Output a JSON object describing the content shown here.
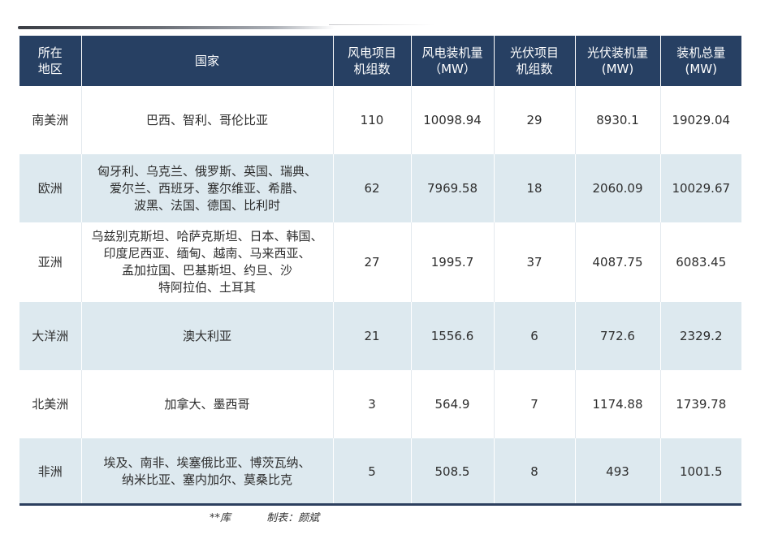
{
  "table": {
    "headers": [
      [
        "所在",
        "地区"
      ],
      [
        "国家"
      ],
      [
        "风电项目",
        "机组数"
      ],
      [
        "风电装机量",
        "（MW）"
      ],
      [
        "光伏项目",
        "机组数"
      ],
      [
        "光伏装机量",
        "(MW)"
      ],
      [
        "装机总量",
        "(MW)"
      ]
    ],
    "rows": [
      {
        "region": "南美洲",
        "countries": [
          "巴西、智利、哥伦比亚"
        ],
        "wind_units": "110",
        "wind_mw": "10098.94",
        "pv_units": "29",
        "pv_mw": "8930.1",
        "total_mw": "19029.04"
      },
      {
        "region": "欧洲",
        "countries": [
          "匈牙利、乌克兰、俄罗斯、英国、瑞典、",
          "爱尔兰、西班牙、塞尔维亚、希腊、",
          "波黑、法国、德国、比利时"
        ],
        "wind_units": "62",
        "wind_mw": "7969.58",
        "pv_units": "18",
        "pv_mw": "2060.09",
        "total_mw": "10029.67"
      },
      {
        "region": "亚洲",
        "countries": [
          "乌兹别克斯坦、哈萨克斯坦、日本、韩国、",
          "印度尼西亚、缅甸、越南、马来西亚、",
          "孟加拉国、巴基斯坦、约旦、沙",
          "特阿拉伯、土耳其"
        ],
        "wind_units": "27",
        "wind_mw": "1995.7",
        "pv_units": "37",
        "pv_mw": "4087.75",
        "total_mw": "6083.45"
      },
      {
        "region": "大洋洲",
        "countries": [
          "澳大利亚"
        ],
        "wind_units": "21",
        "wind_mw": "1556.6",
        "pv_units": "6",
        "pv_mw": "772.6",
        "total_mw": "2329.2"
      },
      {
        "region": "北美洲",
        "countries": [
          "加拿大、墨西哥"
        ],
        "wind_units": "3",
        "wind_mw": "564.9",
        "pv_units": "7",
        "pv_mw": "1174.88",
        "total_mw": "1739.78"
      },
      {
        "region": "非洲",
        "countries": [
          "埃及、南非、埃塞俄比亚、博茨瓦纳、",
          "纳米比亚、塞内加尔、莫桑比克"
        ],
        "wind_units": "5",
        "wind_mw": "508.5",
        "pv_units": "8",
        "pv_mw": "493",
        "total_mw": "1001.5"
      }
    ]
  },
  "footer": {
    "source": "**库",
    "credit": "制表：颜斌"
  }
}
